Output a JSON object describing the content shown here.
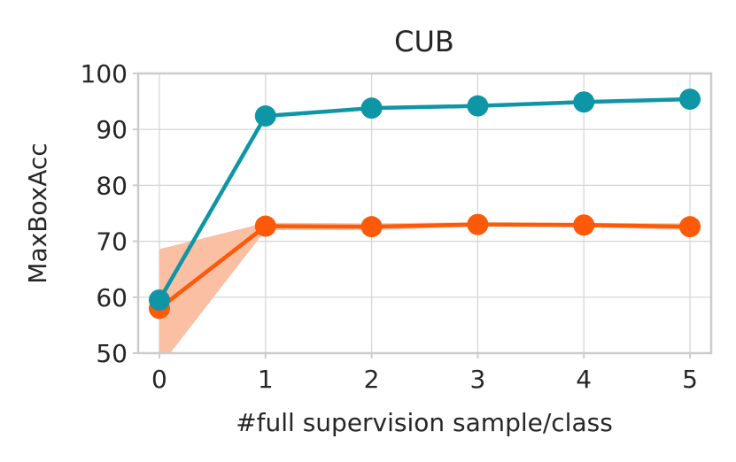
{
  "chart_data": {
    "type": "line",
    "title": "CUB",
    "xlabel": "#full supervision sample/class",
    "ylabel": "MaxBoxAcc",
    "x": [
      0,
      1,
      2,
      3,
      4,
      5
    ],
    "x_tick_labels": [
      "0",
      "1",
      "2",
      "3",
      "4",
      "5"
    ],
    "xlim": [
      -0.2,
      5.2
    ],
    "ylim": [
      50,
      100
    ],
    "y_ticks": [
      50,
      60,
      70,
      80,
      90,
      100
    ],
    "y_tick_labels": [
      "50",
      "60",
      "70",
      "80",
      "90",
      "100"
    ],
    "grid": true,
    "series": [
      {
        "color": "#0e96a6",
        "values": [
          59.5,
          92.4,
          93.8,
          94.2,
          94.9,
          95.4
        ]
      },
      {
        "color": "#fc5a0a",
        "band_color": "#fbbfa3",
        "values": [
          58.0,
          72.7,
          72.6,
          73.0,
          72.9,
          72.6
        ],
        "band_upper": [
          68.6,
          73.3,
          73.2,
          73.4,
          73.3,
          73.2
        ],
        "band_lower": [
          47.5,
          72.0,
          72.0,
          72.6,
          72.5,
          72.0
        ]
      }
    ]
  }
}
